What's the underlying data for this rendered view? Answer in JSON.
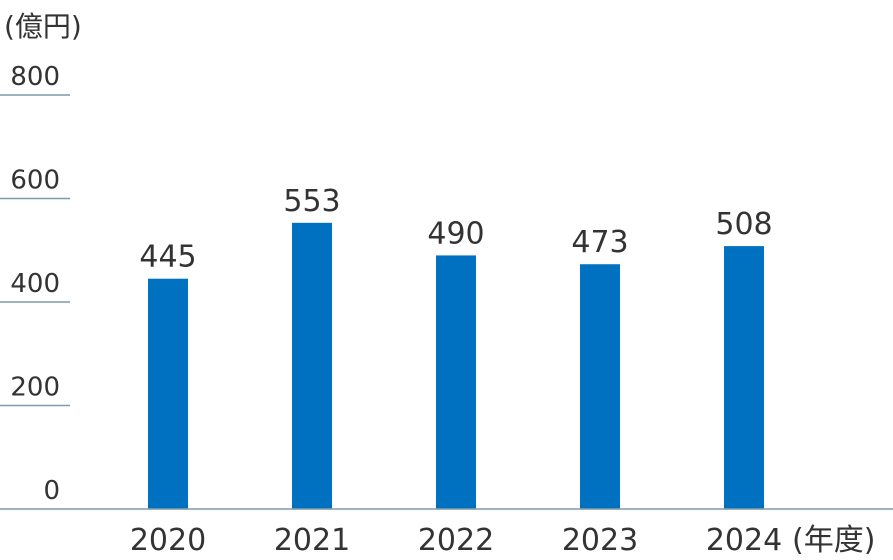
{
  "chart_data": {
    "type": "bar",
    "categories": [
      "2020",
      "2021",
      "2022",
      "2023",
      "2024"
    ],
    "values": [
      445,
      553,
      490,
      473,
      508
    ],
    "value_labels": [
      "445",
      "553",
      "490",
      "473",
      "508"
    ],
    "y_unit": "(億円)",
    "x_unit": "(年度)",
    "yticks": [
      "800",
      "600",
      "400",
      "200",
      "0"
    ],
    "ytick_values": [
      800,
      600,
      400,
      200,
      0
    ],
    "ylim": [
      0,
      800
    ],
    "grid": false,
    "bar_color": "#0070c0",
    "axis_color": "#7f9aaa"
  }
}
